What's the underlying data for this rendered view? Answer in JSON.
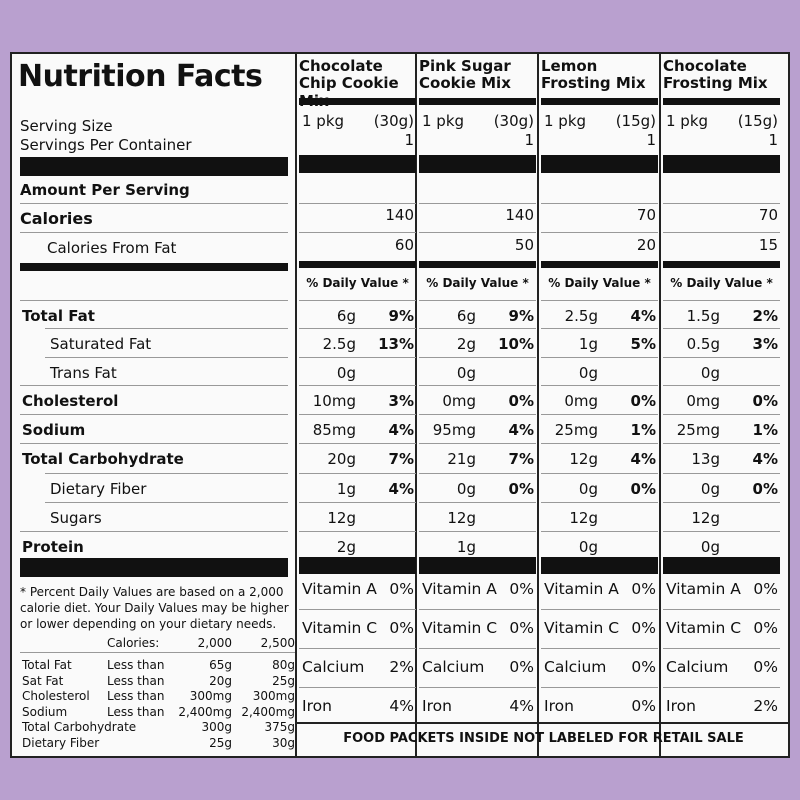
{
  "title": "Nutrition Facts",
  "labels": {
    "serving_size": "Serving Size",
    "servings_per_container": "Servings Per Container",
    "amount_per_serving": "Amount Per Serving",
    "calories": "Calories",
    "calories_from_fat": "Calories From Fat",
    "nutrients": [
      "Total Fat",
      "Saturated Fat",
      "Trans Fat",
      "Cholesterol",
      "Sodium",
      "Total Carbohydrate",
      "Dietary Fiber",
      "Sugars",
      "Protein"
    ],
    "vitamins": [
      "Vitamin A",
      "Vitamin C",
      "Calcium",
      "Iron"
    ],
    "daily_value": "% Daily Value *"
  },
  "products": [
    {
      "name": "Chocolate Chip Cookie Mix",
      "serving_size": "1 pkg",
      "serving_weight": "(30g)",
      "servings": "1",
      "calories": "140",
      "calories_from_fat": "60",
      "nutrients": [
        {
          "amount": "6g",
          "dv": "9%"
        },
        {
          "amount": "2.5g",
          "dv": "13%"
        },
        {
          "amount": "0g"
        },
        {
          "amount": "10mg",
          "dv": "3%"
        },
        {
          "amount": "85mg",
          "dv": "4%"
        },
        {
          "amount": "20g",
          "dv": "7%"
        },
        {
          "amount": "1g",
          "dv": "4%"
        },
        {
          "amount": "12g"
        },
        {
          "amount": "2g"
        }
      ],
      "vitamins": [
        "0%",
        "0%",
        "2%",
        "4%"
      ]
    },
    {
      "name": "Pink Sugar Cookie Mix",
      "serving_size": "1 pkg",
      "serving_weight": "(30g)",
      "servings": "1",
      "calories": "140",
      "calories_from_fat": "50",
      "nutrients": [
        {
          "amount": "6g",
          "dv": "9%"
        },
        {
          "amount": "2g",
          "dv": "10%"
        },
        {
          "amount": "0g"
        },
        {
          "amount": "0mg",
          "dv": "0%"
        },
        {
          "amount": "95mg",
          "dv": "4%"
        },
        {
          "amount": "21g",
          "dv": "7%"
        },
        {
          "amount": "0g",
          "dv": "0%"
        },
        {
          "amount": "12g"
        },
        {
          "amount": "1g"
        }
      ],
      "vitamins": [
        "0%",
        "0%",
        "0%",
        "4%"
      ]
    },
    {
      "name": "Lemon Frosting Mix",
      "serving_size": "1 pkg",
      "serving_weight": "(15g)",
      "servings": "1",
      "calories": "70",
      "calories_from_fat": "20",
      "nutrients": [
        {
          "amount": "2.5g",
          "dv": "4%"
        },
        {
          "amount": "1g",
          "dv": "5%"
        },
        {
          "amount": "0g"
        },
        {
          "amount": "0mg",
          "dv": "0%"
        },
        {
          "amount": "25mg",
          "dv": "1%"
        },
        {
          "amount": "12g",
          "dv": "4%"
        },
        {
          "amount": "0g",
          "dv": "0%"
        },
        {
          "amount": "12g"
        },
        {
          "amount": "0g"
        }
      ],
      "vitamins": [
        "0%",
        "0%",
        "0%",
        "0%"
      ]
    },
    {
      "name": "Chocolate Frosting Mix",
      "serving_size": "1 pkg",
      "serving_weight": "(15g)",
      "servings": "1",
      "calories": "70",
      "calories_from_fat": "15",
      "nutrients": [
        {
          "amount": "1.5g",
          "dv": "2%"
        },
        {
          "amount": "0.5g",
          "dv": "3%"
        },
        {
          "amount": "0g"
        },
        {
          "amount": "0mg",
          "dv": "0%"
        },
        {
          "amount": "25mg",
          "dv": "1%"
        },
        {
          "amount": "13g",
          "dv": "4%"
        },
        {
          "amount": "0g",
          "dv": "0%"
        },
        {
          "amount": "12g"
        },
        {
          "amount": "0g"
        }
      ],
      "vitamins": [
        "0%",
        "0%",
        "0%",
        "2%"
      ]
    }
  ],
  "footnote": {
    "text": "* Percent Daily Values are based on a 2,000 calorie diet. Your Daily Values may be higher or lower depending on your dietary needs.",
    "header": [
      "Calories:",
      "2,000",
      "2,500"
    ],
    "rows": [
      [
        "Total Fat",
        "Less than",
        "65g",
        "80g"
      ],
      [
        "Sat Fat",
        "Less than",
        "20g",
        "25g"
      ],
      [
        "Cholesterol",
        "Less than",
        "300mg",
        "300mg"
      ],
      [
        "Sodium",
        "Less than",
        "2,400mg",
        "2,400mg"
      ],
      [
        "Total Carbohydrate",
        "",
        "300g",
        "375g"
      ],
      [
        "Dietary Fiber",
        "",
        "25g",
        "30g"
      ]
    ]
  },
  "footer": "FOOD PACKETS INSIDE NOT LABELED FOR RETAIL SALE"
}
